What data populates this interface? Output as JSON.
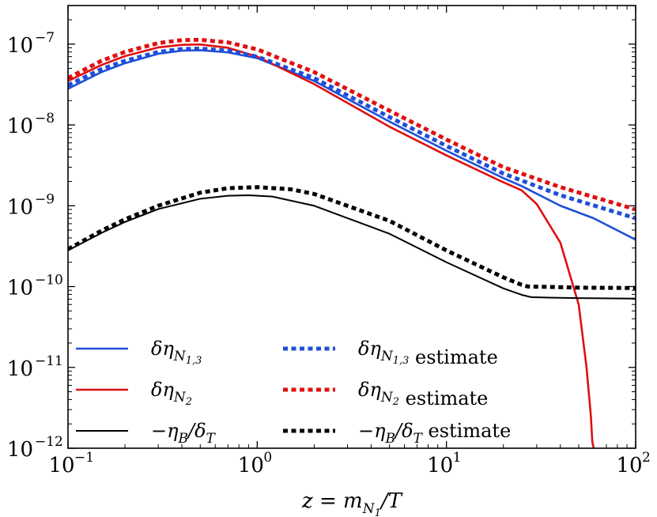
{
  "chart_data": {
    "type": "line",
    "xscale": "log",
    "yscale": "log",
    "xlim": [
      0.1,
      100
    ],
    "ylim": [
      1e-12,
      3e-07
    ],
    "xlabel": "z = m_{N_1}/T",
    "ylabel": "",
    "x_ticks": [
      {
        "value": 0.1,
        "base": "10",
        "exp": "−1"
      },
      {
        "value": 1,
        "base": "10",
        "exp": "0"
      },
      {
        "value": 10,
        "base": "10",
        "exp": "1"
      },
      {
        "value": 100,
        "base": "10",
        "exp": "2"
      }
    ],
    "y_ticks": [
      {
        "value": 1e-07,
        "base": "10",
        "exp": "−7"
      },
      {
        "value": 1e-08,
        "base": "10",
        "exp": "−8"
      },
      {
        "value": 1e-09,
        "base": "10",
        "exp": "−9"
      },
      {
        "value": 1e-10,
        "base": "10",
        "exp": "−10"
      },
      {
        "value": 1e-11,
        "base": "10",
        "exp": "−11"
      },
      {
        "value": 1e-12,
        "base": "10",
        "exp": "−12"
      }
    ],
    "legend_position": "bottom-left",
    "series": [
      {
        "name": "δη_{N_{1,3}}",
        "color": "#1f4fd8",
        "style": "solid",
        "x": [
          0.1,
          0.15,
          0.2,
          0.3,
          0.4,
          0.5,
          0.7,
          1.0,
          2.0,
          5.0,
          10.0,
          20.0,
          25.0,
          40.0,
          60.0,
          100.0
        ],
        "y": [
          2.8e-08,
          4.5e-08,
          5.8e-08,
          7.6e-08,
          8.3e-08,
          8.4e-08,
          7.9e-08,
          6.7e-08,
          3.5e-08,
          1.1e-08,
          4.8e-09,
          2.2e-09,
          1.75e-09,
          1e-09,
          7e-10,
          3.8e-10
        ]
      },
      {
        "name": "δη_{N_2}",
        "color": "#e01010",
        "style": "solid",
        "x": [
          0.1,
          0.15,
          0.2,
          0.3,
          0.4,
          0.5,
          0.7,
          1.0,
          2.0,
          5.0,
          10.0,
          20.0,
          25.0,
          30.0,
          40.0,
          50.0,
          55.0,
          58.0,
          59.0,
          60.0
        ],
        "y": [
          3.5e-08,
          5.5e-08,
          7.1e-08,
          9.1e-08,
          9.8e-08,
          9.9e-08,
          9e-08,
          7e-08,
          3.2e-08,
          9.5e-09,
          4.2e-09,
          1.95e-09,
          1.55e-09,
          1.05e-09,
          3.5e-10,
          6e-11,
          1e-11,
          2.5e-12,
          1.2e-12,
          1e-12
        ]
      },
      {
        "name": "−η_B/δ_T",
        "color": "#000000",
        "style": "solid",
        "x": [
          0.1,
          0.15,
          0.2,
          0.3,
          0.5,
          0.7,
          0.9,
          1.2,
          2.0,
          5.0,
          10.0,
          20.0,
          25.0,
          28.0,
          35.0,
          50.0,
          100.0
        ],
        "y": [
          2.8e-10,
          4.6e-10,
          6.3e-10,
          9.1e-10,
          1.22e-09,
          1.33e-09,
          1.35e-09,
          1.3e-09,
          1e-09,
          4.5e-10,
          2e-10,
          9.5e-11,
          7.9e-11,
          7.4e-11,
          7.3e-11,
          7.2e-11,
          7.1e-11
        ]
      },
      {
        "name": "δη_{N_{1,3}} estimate",
        "color": "#1f4fd8",
        "style": "dotted",
        "x": [
          0.1,
          0.15,
          0.2,
          0.3,
          0.4,
          0.5,
          0.7,
          1.0,
          2.0,
          5.0,
          10.0,
          20.0,
          40.0,
          100.0
        ],
        "y": [
          3.1e-08,
          4.9e-08,
          6.2e-08,
          8e-08,
          8.7e-08,
          8.8e-08,
          8.3e-08,
          7e-08,
          3.8e-08,
          1.25e-08,
          5.5e-09,
          2.5e-09,
          1.35e-09,
          7e-10
        ]
      },
      {
        "name": "δη_{N_2} estimate",
        "color": "#e01010",
        "style": "dotted",
        "x": [
          0.1,
          0.15,
          0.2,
          0.3,
          0.4,
          0.5,
          0.7,
          1.0,
          2.0,
          5.0,
          10.0,
          20.0,
          40.0,
          100.0
        ],
        "y": [
          3.8e-08,
          6.2e-08,
          8e-08,
          1.03e-07,
          1.12e-07,
          1.13e-07,
          1.05e-07,
          8.6e-08,
          4.5e-08,
          1.5e-08,
          6.6e-09,
          3e-09,
          1.7e-09,
          9e-10
        ]
      },
      {
        "name": "−η_B/δ_T estimate",
        "color": "#000000",
        "style": "dotted",
        "x": [
          0.1,
          0.15,
          0.2,
          0.3,
          0.5,
          0.7,
          1.0,
          1.5,
          2.0,
          5.0,
          10.0,
          20.0,
          25.0,
          27.0,
          35.0,
          50.0,
          100.0
        ],
        "y": [
          2.9e-10,
          4.9e-10,
          6.8e-10,
          1e-09,
          1.45e-09,
          1.65e-09,
          1.7e-09,
          1.6e-09,
          1.4e-09,
          6.5e-10,
          2.8e-10,
          1.3e-10,
          1.05e-10,
          1e-10,
          9.9e-11,
          9.7e-11,
          9.6e-11
        ]
      }
    ],
    "legend": [
      {
        "label": "δη",
        "sub": "N",
        "subsub": "1,3",
        "suffix": "",
        "series": 0
      },
      {
        "label": "δη",
        "sub": "N",
        "subsub": "2",
        "suffix": "",
        "series": 1
      },
      {
        "label": "−η",
        "sub": "B",
        "subsub": "",
        "suffix": "/δ_T",
        "series": 2
      },
      {
        "label": "δη",
        "sub": "N",
        "subsub": "1,3",
        "suffix": " estimate",
        "series": 3
      },
      {
        "label": "δη",
        "sub": "N",
        "subsub": "2",
        "suffix": " estimate",
        "series": 4
      },
      {
        "label": "−η",
        "sub": "B",
        "subsub": "",
        "suffix": "/δ_T estimate",
        "series": 5
      }
    ]
  }
}
